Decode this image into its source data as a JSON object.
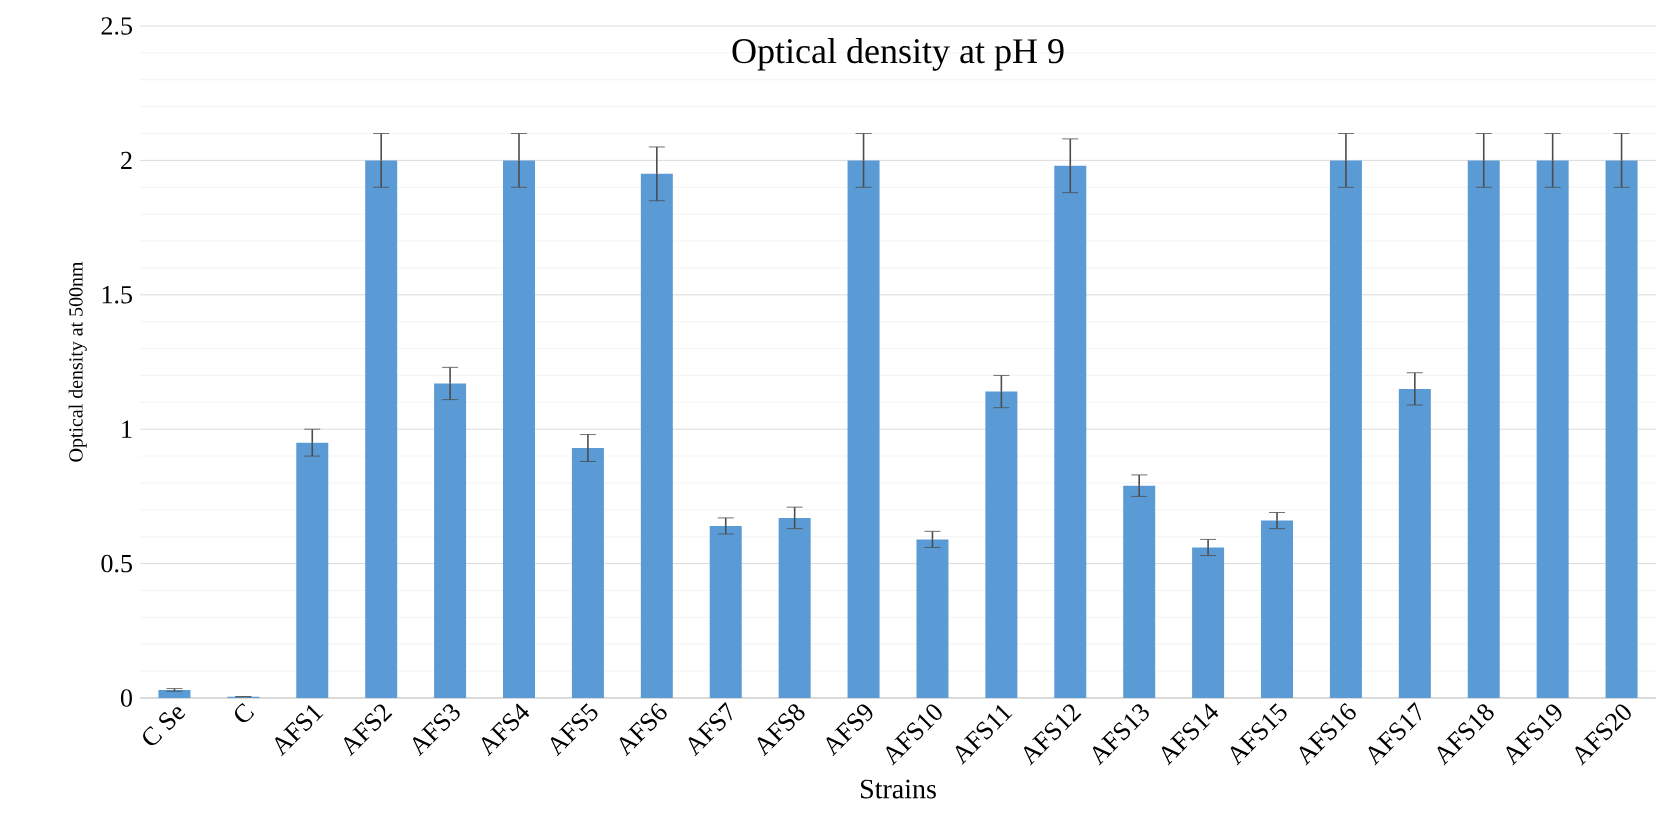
{
  "chart_data": {
    "type": "bar",
    "title": "Optical density at pH 9",
    "xlabel": "Strains",
    "ylabel": "Optical density at 500nm",
    "categories": [
      "C Se",
      "C",
      "AFS1",
      "AFS2",
      "AFS3",
      "AFS4",
      "AFS5",
      "AFS6",
      "AFS7",
      "AFS8",
      "AFS9",
      "AFS10",
      "AFS11",
      "AFS12",
      "AFS13",
      "AFS14",
      "AFS15",
      "AFS16",
      "AFS17",
      "AFS18",
      "AFS19",
      "AFS20"
    ],
    "values": [
      0.03,
      0.005,
      0.95,
      2.0,
      1.17,
      2.0,
      0.93,
      1.95,
      0.64,
      0.67,
      2.0,
      0.59,
      1.14,
      1.98,
      0.79,
      0.56,
      0.66,
      2.0,
      1.15,
      2.0,
      2.0,
      2.0
    ],
    "errors": [
      0.005,
      null,
      0.05,
      0.1,
      0.06,
      0.1,
      0.05,
      0.1,
      0.03,
      0.04,
      0.1,
      0.03,
      0.06,
      0.1,
      0.04,
      0.03,
      0.03,
      0.1,
      0.06,
      0.1,
      0.1,
      0.1
    ],
    "color": "#5b9bd5",
    "ylim": [
      0,
      2.5
    ],
    "yticks": [
      0,
      0.5,
      1,
      1.5,
      2,
      2.5
    ],
    "grid": "y"
  }
}
